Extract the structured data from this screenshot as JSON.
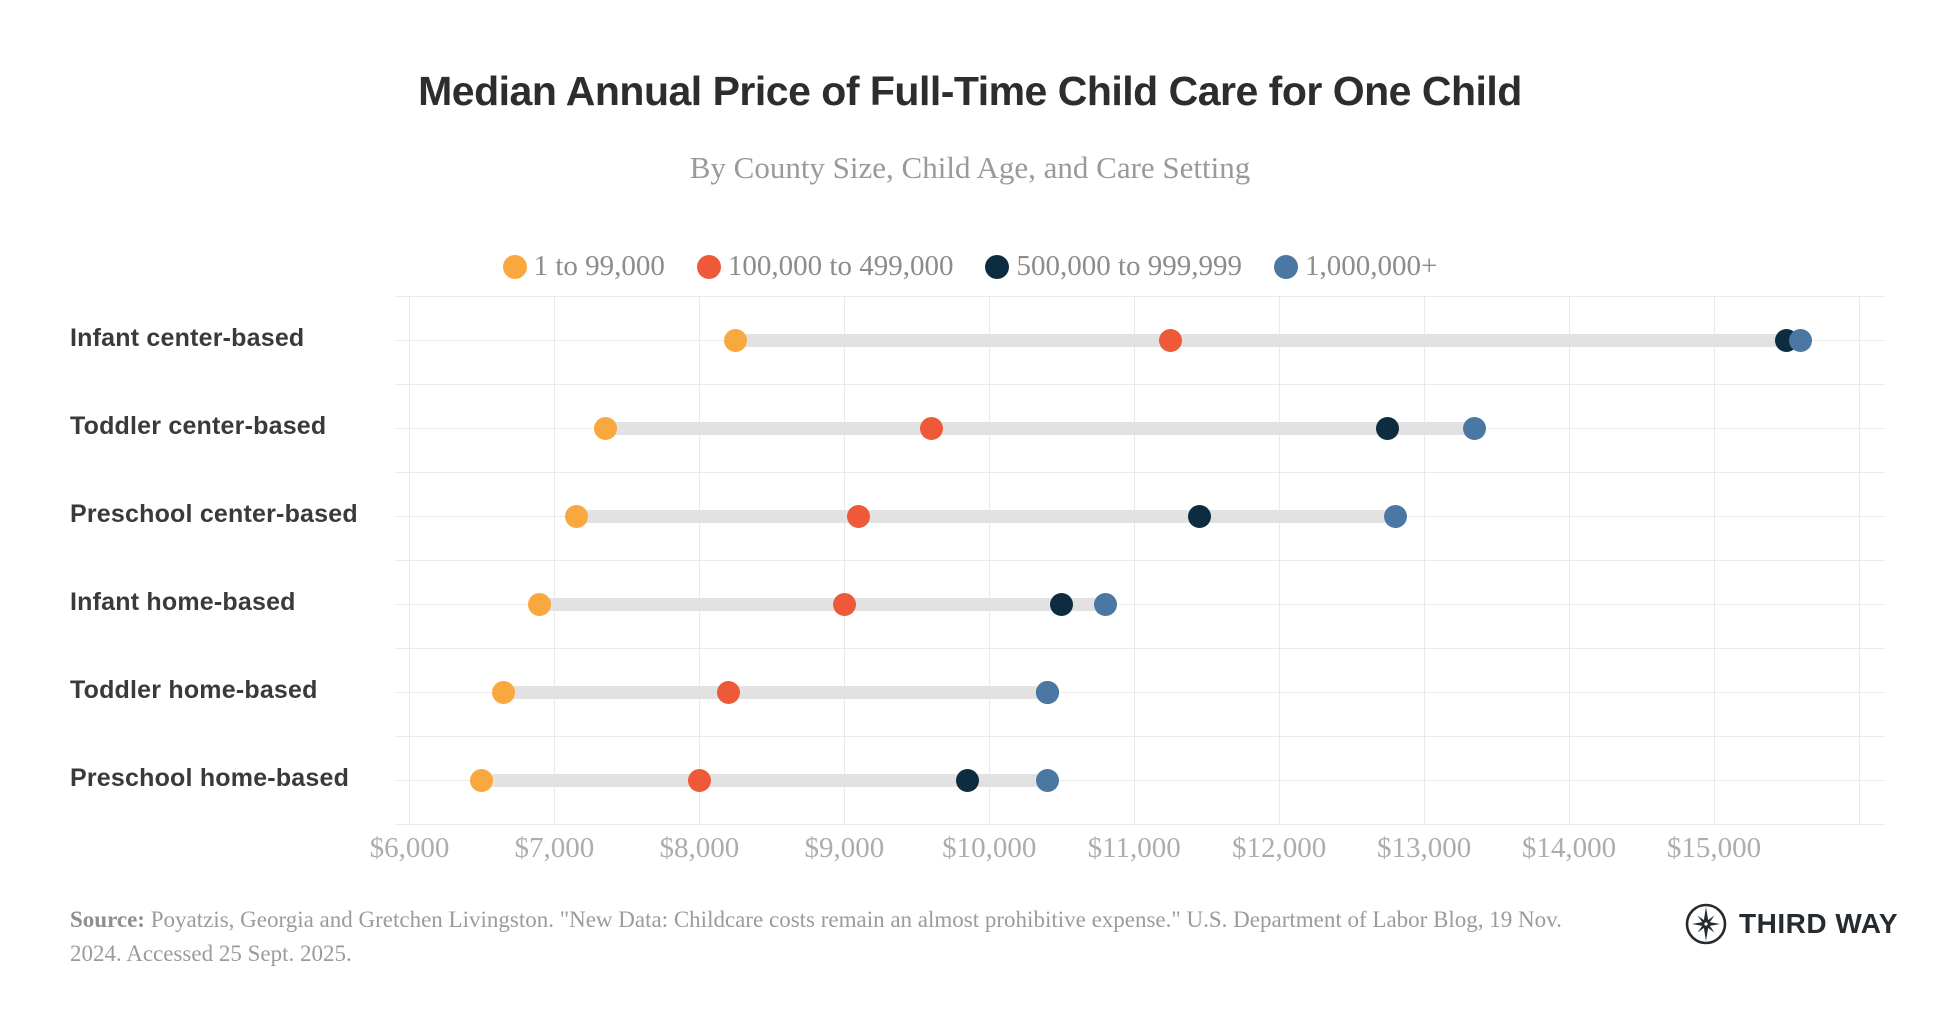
{
  "header": {
    "title": "Median Annual Price of Full-Time Child Care for One Child",
    "subtitle": "By County Size, Child Age, and Care Setting"
  },
  "chart_data": {
    "type": "dumbbell-dot",
    "title": "Median Annual Price of Full-Time Child Care for One Child",
    "subtitle": "By County Size, Child Age, and Care Setting",
    "legend_position": "top",
    "grid": "on",
    "categories": [
      "Infant center-based",
      "Toddler center-based",
      "Preschool center-based",
      "Infant home-based",
      "Toddler home-based",
      "Preschool home-based"
    ],
    "series": [
      {
        "name": "1 to 99,000",
        "color": "#F9A83F",
        "values": [
          8250,
          7350,
          7150,
          6900,
          6650,
          6500
        ]
      },
      {
        "name": "100,000 to 499,000",
        "color": "#EE5A39",
        "values": [
          11250,
          9600,
          9100,
          9000,
          8200,
          8000
        ]
      },
      {
        "name": "500,000 to 999,999",
        "color": "#0D2C40",
        "values": [
          15500,
          12750,
          11450,
          10500,
          10400,
          9850
        ]
      },
      {
        "name": "1,000,000+",
        "color": "#4B77A3",
        "values": [
          15600,
          13350,
          12800,
          10800,
          10400,
          10400
        ]
      }
    ],
    "x_ticks": [
      "$6,000",
      "$7,000",
      "$8,000",
      "$9,000",
      "$10,000",
      "$11,000",
      "$12,000",
      "$13,000",
      "$14,000",
      "$15,000"
    ],
    "x_tick_values": [
      6000,
      7000,
      8000,
      9000,
      10000,
      11000,
      12000,
      13000,
      14000,
      15000
    ],
    "grid_tick_values": [
      6000,
      7000,
      8000,
      9000,
      10000,
      11000,
      12000,
      13000,
      14000,
      15000,
      16000
    ],
    "xlim": [
      5900,
      16180
    ],
    "bar_color": "#E2E2E2",
    "grid_color": "#E9E9E9"
  },
  "footer": {
    "source_label": "Source:",
    "source_text": " Poyatzis, Georgia and Gretchen Livingston. \"New Data: Childcare costs remain an almost prohibitive expense.\" U.S. Department of Labor Blog, 19 Nov. 2024. Accessed 25 Sept. 2025.",
    "logo_text": "THIRD WAY"
  }
}
